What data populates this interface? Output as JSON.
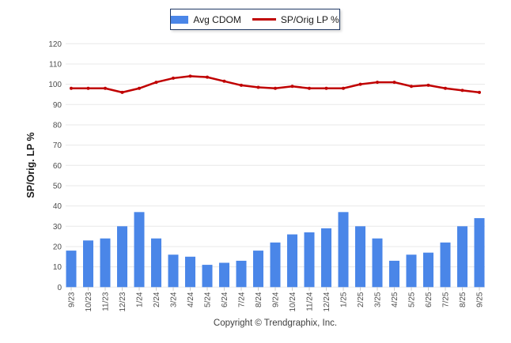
{
  "legend": {
    "items": [
      {
        "label": "Avg CDOM",
        "type": "bar",
        "color": "#4a86e8"
      },
      {
        "label": "SP/Orig LP %",
        "type": "line",
        "color": "#c00000"
      }
    ]
  },
  "footer": {
    "copyright": "Copyright © Trendgraphix, Inc."
  },
  "chart_data": {
    "type": "bar+line",
    "categories": [
      "9/23",
      "10/23",
      "11/23",
      "12/23",
      "1/24",
      "2/24",
      "3/24",
      "4/24",
      "5/24",
      "6/24",
      "7/24",
      "8/24",
      "9/24",
      "10/24",
      "11/24",
      "12/24",
      "1/25",
      "2/25",
      "3/25",
      "4/25",
      "5/25",
      "6/25",
      "7/25",
      "8/25",
      "9/25"
    ],
    "series": [
      {
        "name": "Avg CDOM",
        "type": "bar",
        "color": "#4a86e8",
        "values": [
          18,
          23,
          24,
          30,
          37,
          24,
          16,
          15,
          11,
          12,
          13,
          18,
          22,
          26,
          27,
          29,
          37,
          30,
          24,
          13,
          16,
          17,
          22,
          30,
          34
        ]
      },
      {
        "name": "SP/Orig LP %",
        "type": "line",
        "color": "#c00000",
        "values": [
          98,
          98,
          98,
          96,
          98,
          101,
          103,
          104,
          103.5,
          101.5,
          99.5,
          98.5,
          98,
          99,
          98,
          98,
          98,
          100,
          101,
          101,
          99,
          99.5,
          98,
          97,
          96
        ]
      }
    ],
    "title": "",
    "xlabel": "",
    "ylabel": "SP/Orig. LP %",
    "ylim": [
      0,
      120
    ],
    "ytick_step": 10,
    "grid": true,
    "grid_color": "#e8e8e8",
    "tick_label_color": "#4d4d4d",
    "legend_position": "top-center"
  }
}
